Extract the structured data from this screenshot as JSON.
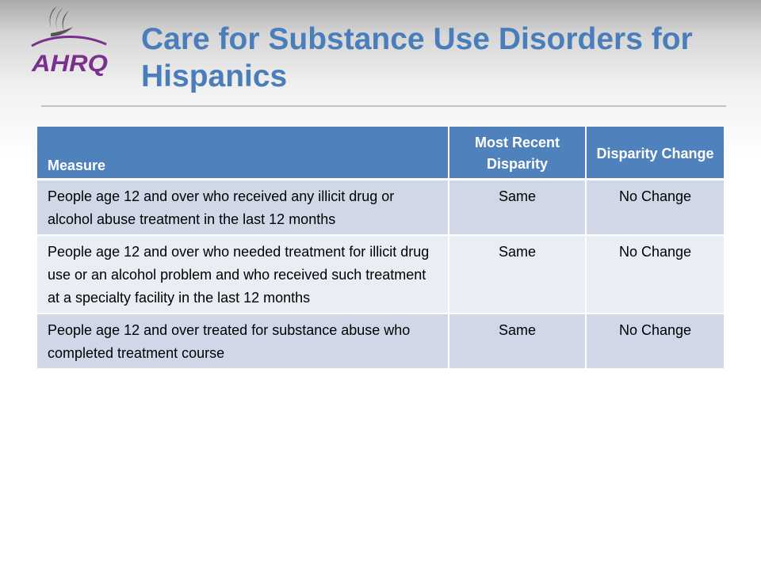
{
  "slide": {
    "title": "Care for Substance Use Disorders for Hispanics",
    "logo_text": "AHRQ"
  },
  "table": {
    "headers": {
      "measure": "Measure",
      "recent": "Most Recent Disparity",
      "change": "Disparity Change"
    },
    "rows": [
      {
        "measure": "People age 12 and over who received any illicit drug or alcohol abuse treatment in the last 12 months",
        "recent": "Same",
        "change": "No Change"
      },
      {
        "measure": "People age 12 and over who needed treatment for illicit drug use or an alcohol problem and who received such treatment at a specialty facility in the last 12 months",
        "recent": "Same",
        "change": "No Change"
      },
      {
        "measure": "People age 12 and over treated for substance abuse who completed treatment course",
        "recent": "Same",
        "change": "No Change"
      }
    ]
  },
  "colors": {
    "title": "#4a7ebb",
    "header_fill": "#4f81bd",
    "row_band_dark": "#d0d8e8",
    "row_band_light": "#e9edf4",
    "logo_purple": "#7b2f8e",
    "hhs_eagle": "#555555"
  },
  "icons": {
    "hhs": "hhs-eagle-icon",
    "agency": "ahrq-logo"
  }
}
